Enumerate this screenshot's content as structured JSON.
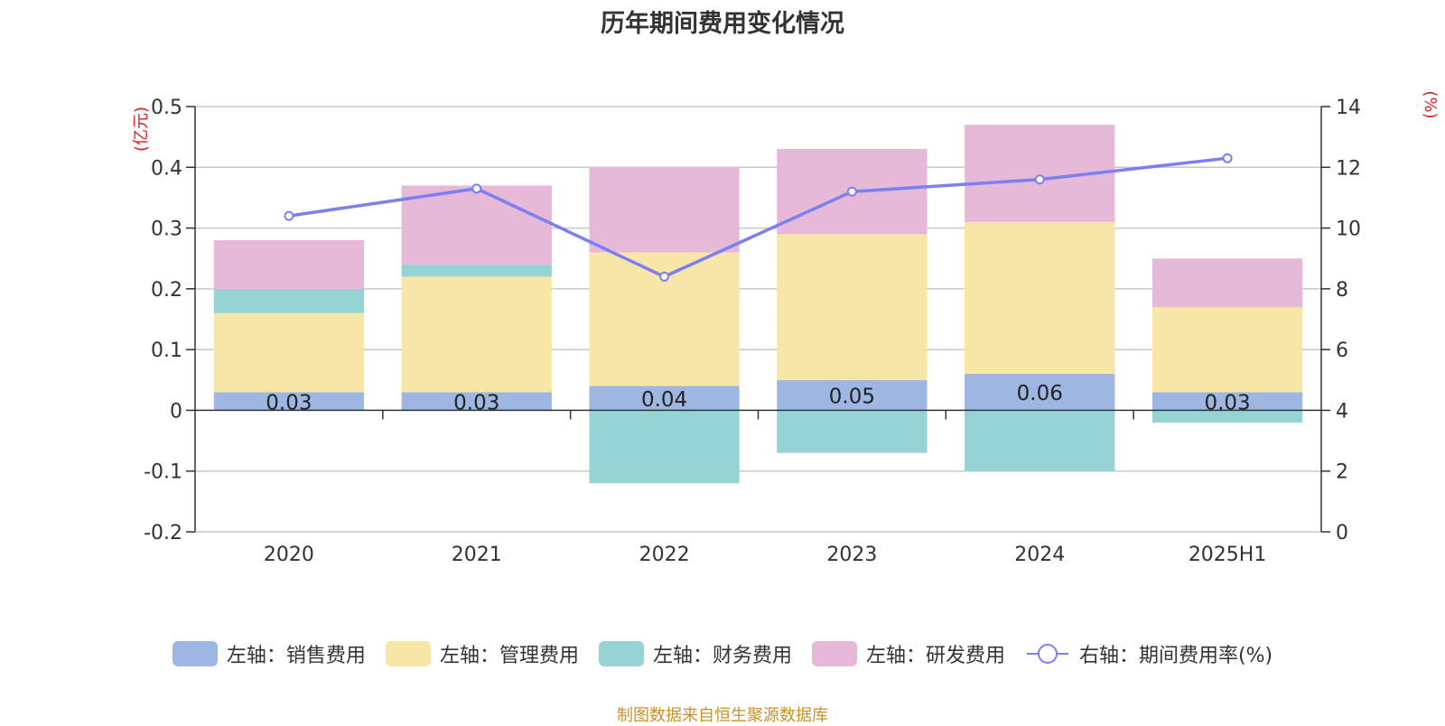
{
  "chart_data": {
    "type": "bar",
    "title": "历年期间费用变化情况",
    "categories": [
      "2020",
      "2021",
      "2022",
      "2023",
      "2024",
      "2025H1"
    ],
    "series": [
      {
        "name": "左轴：销售费用",
        "axis": "left",
        "stack": true,
        "color": "#9db7e2",
        "values": [
          0.03,
          0.03,
          0.04,
          0.05,
          0.06,
          0.03
        ],
        "show_labels": true
      },
      {
        "name": "左轴：管理费用",
        "axis": "left",
        "stack": true,
        "color": "#f8e6a6",
        "values": [
          0.13,
          0.19,
          0.22,
          0.24,
          0.25,
          0.14
        ]
      },
      {
        "name": "左轴：财务费用",
        "axis": "left",
        "stack": true,
        "color": "#96d4d4",
        "values": [
          0.04,
          0.02,
          -0.12,
          -0.07,
          -0.1,
          -0.02
        ]
      },
      {
        "name": "左轴：研发费用",
        "axis": "left",
        "stack": true,
        "color": "#e6b9d9",
        "values": [
          0.08,
          0.13,
          0.14,
          0.14,
          0.16,
          0.08
        ]
      },
      {
        "name": "右轴：期间费用率(%)",
        "axis": "right",
        "type": "line",
        "color": "#7b7ff0",
        "values": [
          10.4,
          11.3,
          8.4,
          11.2,
          11.6,
          12.3
        ]
      }
    ],
    "left_axis": {
      "label": "(亿元)",
      "ylim": [
        -0.2,
        0.5
      ],
      "ticks": [
        "-0.2",
        "-0.1",
        "0",
        "0.1",
        "0.2",
        "0.3",
        "0.4",
        "0.5"
      ]
    },
    "right_axis": {
      "label": "(%)",
      "ylim": [
        0,
        14
      ],
      "ticks": [
        "0",
        "2",
        "4",
        "6",
        "8",
        "10",
        "12",
        "14"
      ]
    },
    "grid": true,
    "legend_position": "bottom",
    "source": "制图数据来自恒生聚源数据库"
  }
}
